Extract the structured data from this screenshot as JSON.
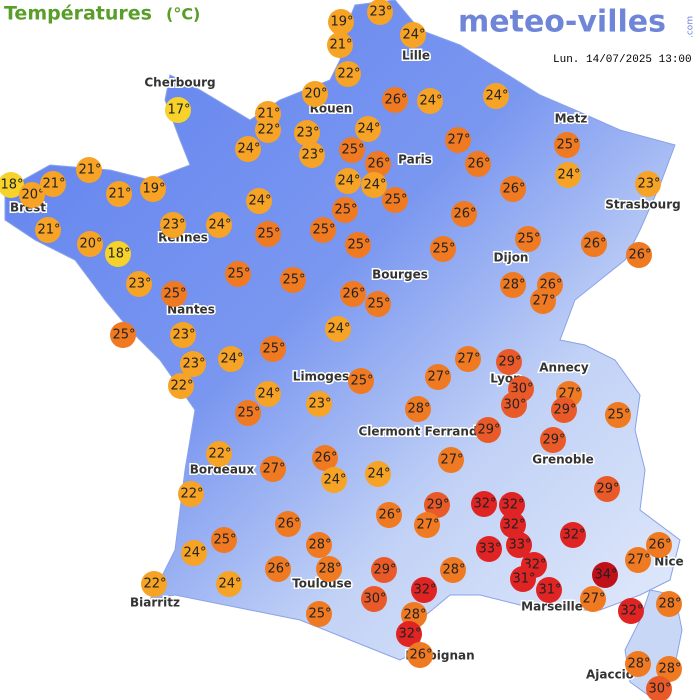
{
  "header": {
    "title": "Températures",
    "unit": "(°C)",
    "logo": "meteo-villes",
    "logo_suffix": ".com",
    "timestamp": "Lun. 14/07/2025 13:00"
  },
  "cities": [
    "Cherbourg",
    "Lille",
    "Rouen",
    "Paris",
    "Metz",
    "Brest",
    "Rennes",
    "Strasbourg",
    "Dijon",
    "Nantes",
    "Bourges",
    "Annecy",
    "Limoges",
    "Lyon",
    "Clermont Ferrand",
    "Grenoble",
    "Bordeaux",
    "Nice",
    "Toulouse",
    "Marseille",
    "Biarritz",
    "Perpignan",
    "Ajaccio"
  ],
  "temperatures": [
    "19°",
    "23°",
    "21°",
    "24°",
    "22°",
    "17°",
    "20°",
    "21°",
    "22°",
    "23°",
    "23°",
    "24°",
    "26°",
    "24°",
    "24°",
    "25°",
    "26°",
    "27°",
    "26°",
    "25°",
    "24°",
    "24°",
    "18°",
    "20°",
    "21°",
    "21°",
    "21°",
    "19°",
    "24°",
    "24°",
    "25°",
    "26°",
    "23°",
    "21°",
    "23°",
    "24°",
    "24°",
    "25°",
    "26°",
    "20°",
    "18°",
    "25°",
    "25°",
    "25°",
    "25°",
    "25°",
    "26°",
    "26°",
    "23°",
    "25°",
    "25°",
    "25°",
    "26°",
    "25°",
    "28°",
    "26°",
    "27°",
    "25°",
    "23°",
    "24°",
    "24°",
    "25°",
    "27°",
    "29°",
    "23°",
    "22°",
    "25°",
    "27°",
    "30°",
    "27°",
    "24°",
    "25°",
    "23°",
    "28°",
    "30°",
    "29°",
    "25°",
    "29°",
    "29°",
    "22°",
    "27°",
    "27°",
    "26°",
    "24°",
    "24°",
    "29°",
    "22°",
    "29°",
    "32°",
    "32°",
    "26°",
    "27°",
    "32°",
    "26°",
    "25°",
    "32°",
    "33°",
    "33°",
    "26°",
    "28°",
    "27°",
    "24°",
    "32°",
    "26°",
    "28°",
    "29°",
    "28°",
    "34°",
    "31°",
    "31°",
    "24°",
    "22°",
    "32°",
    "30°",
    "27°",
    "28°",
    "32°",
    "25°",
    "28°",
    "32°",
    "26°",
    "28°",
    "28°",
    "30°"
  ]
}
